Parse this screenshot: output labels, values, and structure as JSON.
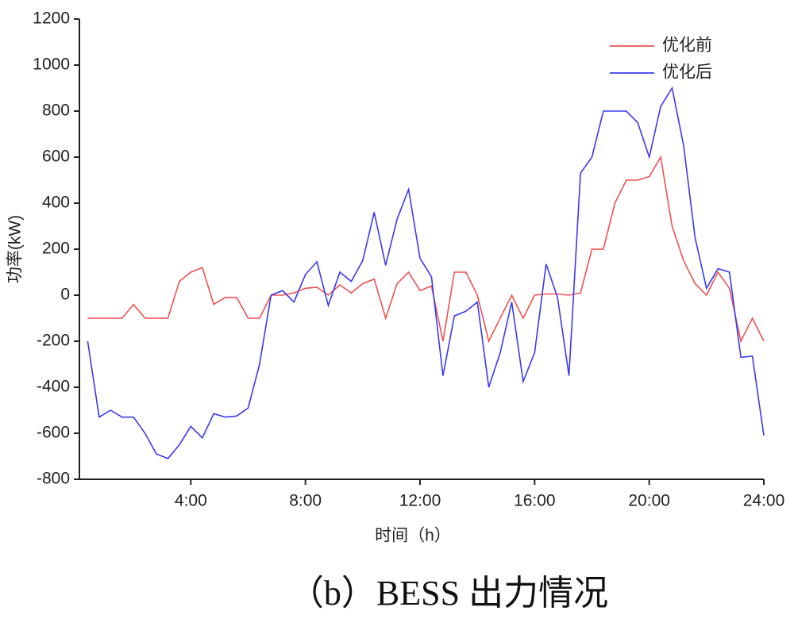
{
  "chart_data": {
    "type": "line",
    "caption": "（b）BESS 出力情况",
    "xlabel": "时间（h）",
    "ylabel": "功率(kW)",
    "x": [
      0.4,
      0.8,
      1.2,
      1.6,
      2,
      2.4,
      2.8,
      3.2,
      3.6,
      4,
      4.4,
      4.8,
      5.2,
      5.6,
      6,
      6.4,
      6.8,
      7.2,
      7.6,
      8,
      8.4,
      8.8,
      9.2,
      9.6,
      10,
      10.4,
      10.8,
      11.2,
      11.6,
      12,
      12.4,
      12.8,
      13.2,
      13.6,
      14,
      14.4,
      14.8,
      15.2,
      15.6,
      16,
      16.4,
      16.8,
      17.2,
      17.6,
      18,
      18.4,
      18.8,
      19.2,
      19.6,
      20,
      20.4,
      20.8,
      21.2,
      21.6,
      22,
      22.4,
      22.8,
      23.2,
      23.6,
      24
    ],
    "series": [
      {
        "name": "优化前",
        "color": "#f05050",
        "values": [
          -100,
          -100,
          -100,
          -100,
          -40,
          -100,
          -100,
          -100,
          60,
          100,
          120,
          -40,
          -10,
          -10,
          -100,
          -100,
          0,
          0,
          10,
          30,
          35,
          0,
          45,
          10,
          50,
          70,
          -100,
          50,
          100,
          20,
          40,
          -200,
          100,
          100,
          0,
          -200,
          -100,
          0,
          -100,
          0,
          5,
          5,
          0,
          10,
          200,
          200,
          400,
          500,
          500,
          515,
          600,
          300,
          150,
          50,
          0,
          100,
          30,
          -200,
          -100,
          -200
        ]
      },
      {
        "name": "优化后",
        "color": "#3a3af0",
        "values": [
          -200,
          -530,
          -500,
          -530,
          -530,
          -600,
          -690,
          -710,
          -650,
          -570,
          -620,
          -515,
          -530,
          -525,
          -490,
          -300,
          0,
          20,
          -30,
          90,
          145,
          -45,
          100,
          60,
          150,
          360,
          130,
          330,
          460,
          160,
          80,
          -350,
          -90,
          -70,
          -30,
          -400,
          -250,
          -30,
          -375,
          -250,
          135,
          -10,
          -350,
          530,
          600,
          800,
          800,
          800,
          750,
          600,
          820,
          900,
          650,
          250,
          30,
          115,
          100,
          -270,
          -265,
          -610
        ]
      }
    ],
    "xlim": [
      0,
      24
    ],
    "ylim": [
      -800,
      1200
    ],
    "xticks": [
      {
        "value": 4,
        "label": "4:00"
      },
      {
        "value": 8,
        "label": "8:00"
      },
      {
        "value": 12,
        "label": "12:00"
      },
      {
        "value": 16,
        "label": "16:00"
      },
      {
        "value": 20,
        "label": "20:00"
      },
      {
        "value": 24,
        "label": "24:00"
      }
    ],
    "yticks": [
      -800,
      -600,
      -400,
      -200,
      0,
      200,
      400,
      600,
      800,
      1000,
      1200
    ],
    "legend": "upper right"
  }
}
